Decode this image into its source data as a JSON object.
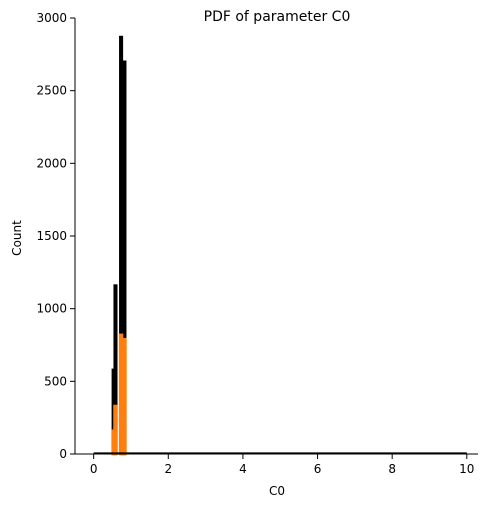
{
  "chart_data": {
    "type": "bar",
    "title": "PDF of parameter C0",
    "xlabel": "C0",
    "ylabel": "Count",
    "xlim": [
      -0.5,
      10.3
    ],
    "ylim": [
      0,
      3000
    ],
    "xticks": [
      0,
      2,
      4,
      6,
      8,
      10
    ],
    "yticks": [
      0,
      500,
      1000,
      1500,
      2000,
      2500,
      3000
    ],
    "grid": false,
    "series": [
      {
        "color": "#000000",
        "bins": [
          {
            "x0": 0.51,
            "x1": 0.56,
            "value": 580
          },
          {
            "x0": 0.56,
            "x1": 0.61,
            "value": 1160
          },
          {
            "x0": 0.71,
            "x1": 0.76,
            "value": 2870
          },
          {
            "x0": 0.76,
            "x1": 0.8,
            "value": 830
          },
          {
            "x0": 0.8,
            "x1": 0.85,
            "value": 2700
          }
        ]
      },
      {
        "color": "#ff7f0e",
        "bins": [
          {
            "x0": 0.51,
            "x1": 0.56,
            "value": 160
          },
          {
            "x0": 0.56,
            "x1": 0.61,
            "value": 330
          },
          {
            "x0": 0.71,
            "x1": 0.76,
            "value": 820
          },
          {
            "x0": 0.76,
            "x1": 0.8,
            "value": 250
          },
          {
            "x0": 0.8,
            "x1": 0.85,
            "value": 790
          }
        ]
      }
    ],
    "baseline": {
      "x0": 0.0,
      "x1": 10.0,
      "color": "#000000"
    }
  }
}
